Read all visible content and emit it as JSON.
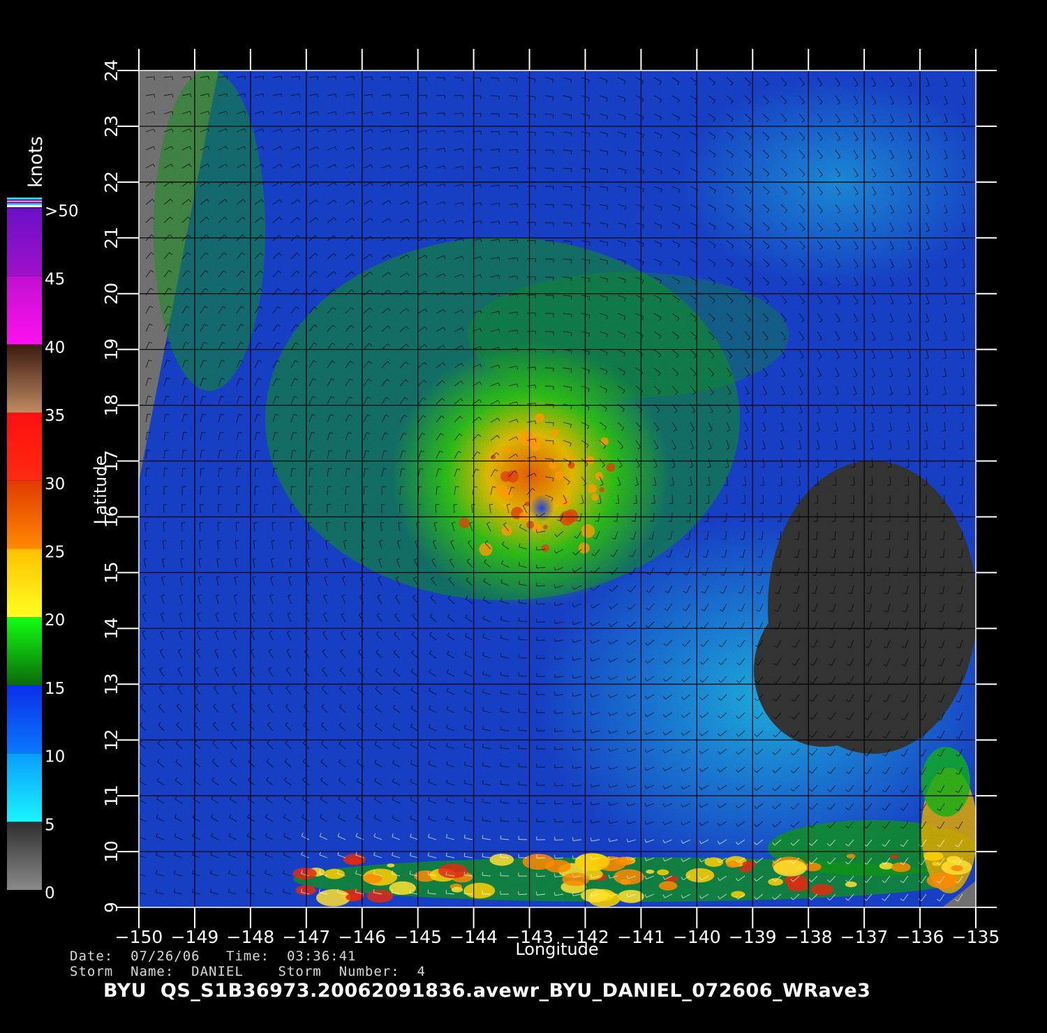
{
  "map": {
    "xlabel": "Longitude",
    "ylabel": "Latitude",
    "lon_ticks": [
      "−150",
      "−149",
      "−148",
      "−147",
      "−146",
      "−145",
      "−144",
      "−143",
      "−142",
      "−141",
      "−140",
      "−139",
      "−138",
      "−137",
      "−136",
      "−135"
    ],
    "lat_ticks": [
      "9",
      "10",
      "11",
      "12",
      "13",
      "14",
      "15",
      "16",
      "17",
      "18",
      "19",
      "20",
      "21",
      "22",
      "23",
      "24"
    ],
    "lon_range": [
      -150,
      -135
    ],
    "lat_range": [
      9,
      24
    ],
    "storm_center": {
      "lon": -142.8,
      "lat": 16.2
    }
  },
  "legend": {
    "unit": "knots",
    "labels": [
      "0",
      "5",
      "10",
      "15",
      "20",
      "25",
      "30",
      "35",
      "40",
      "45",
      ">50"
    ],
    "bands": [
      {
        "from": 0,
        "to": 5,
        "colors": [
          "#8a8a8a",
          "#2e2e2e"
        ]
      },
      {
        "from": 5,
        "to": 10,
        "colors": [
          "#19f5ff",
          "#0a9cff"
        ]
      },
      {
        "from": 10,
        "to": 15,
        "colors": [
          "#0a78ff",
          "#0a2ee8"
        ]
      },
      {
        "from": 15,
        "to": 20,
        "colors": [
          "#0b6a0b",
          "#12ff12"
        ]
      },
      {
        "from": 20,
        "to": 25,
        "colors": [
          "#ffff20",
          "#ffc000"
        ]
      },
      {
        "from": 25,
        "to": 30,
        "colors": [
          "#ff8a00",
          "#e03a00"
        ]
      },
      {
        "from": 30,
        "to": 35,
        "colors": [
          "#ff2a10",
          "#ff1010"
        ]
      },
      {
        "from": 35,
        "to": 40,
        "colors": [
          "#c08a60",
          "#3a1a10"
        ]
      },
      {
        "from": 40,
        "to": 45,
        "colors": [
          "#ff10f0",
          "#c010d0"
        ]
      },
      {
        "from": 45,
        "to": 50,
        "colors": [
          "#a010c8",
          "#6a10c8"
        ]
      }
    ]
  },
  "footer": {
    "line1": "Date:  07/26/06   Time:  03:36:41",
    "line2": "Storm  Name:  DANIEL    Storm  Number:  4",
    "title": "BYU  QS_S1B36973.20062091836.avewr_BYU_DANIEL_072606_WRave3"
  }
}
